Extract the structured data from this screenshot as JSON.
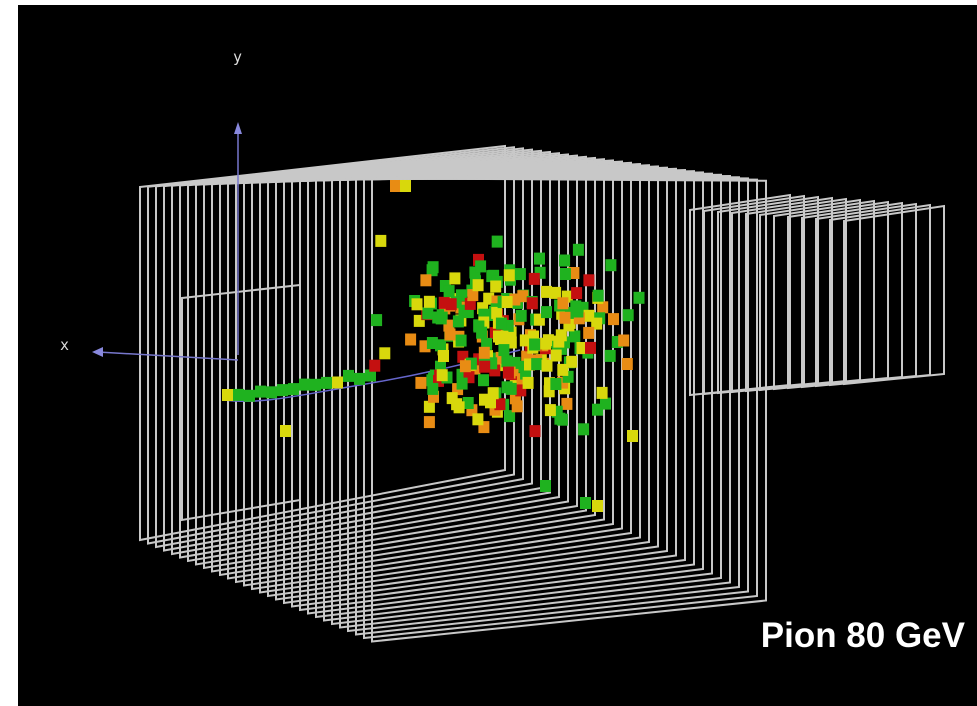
{
  "axes": {
    "y": "y",
    "x": "x"
  },
  "caption": "Pion 80 GeV"
}
